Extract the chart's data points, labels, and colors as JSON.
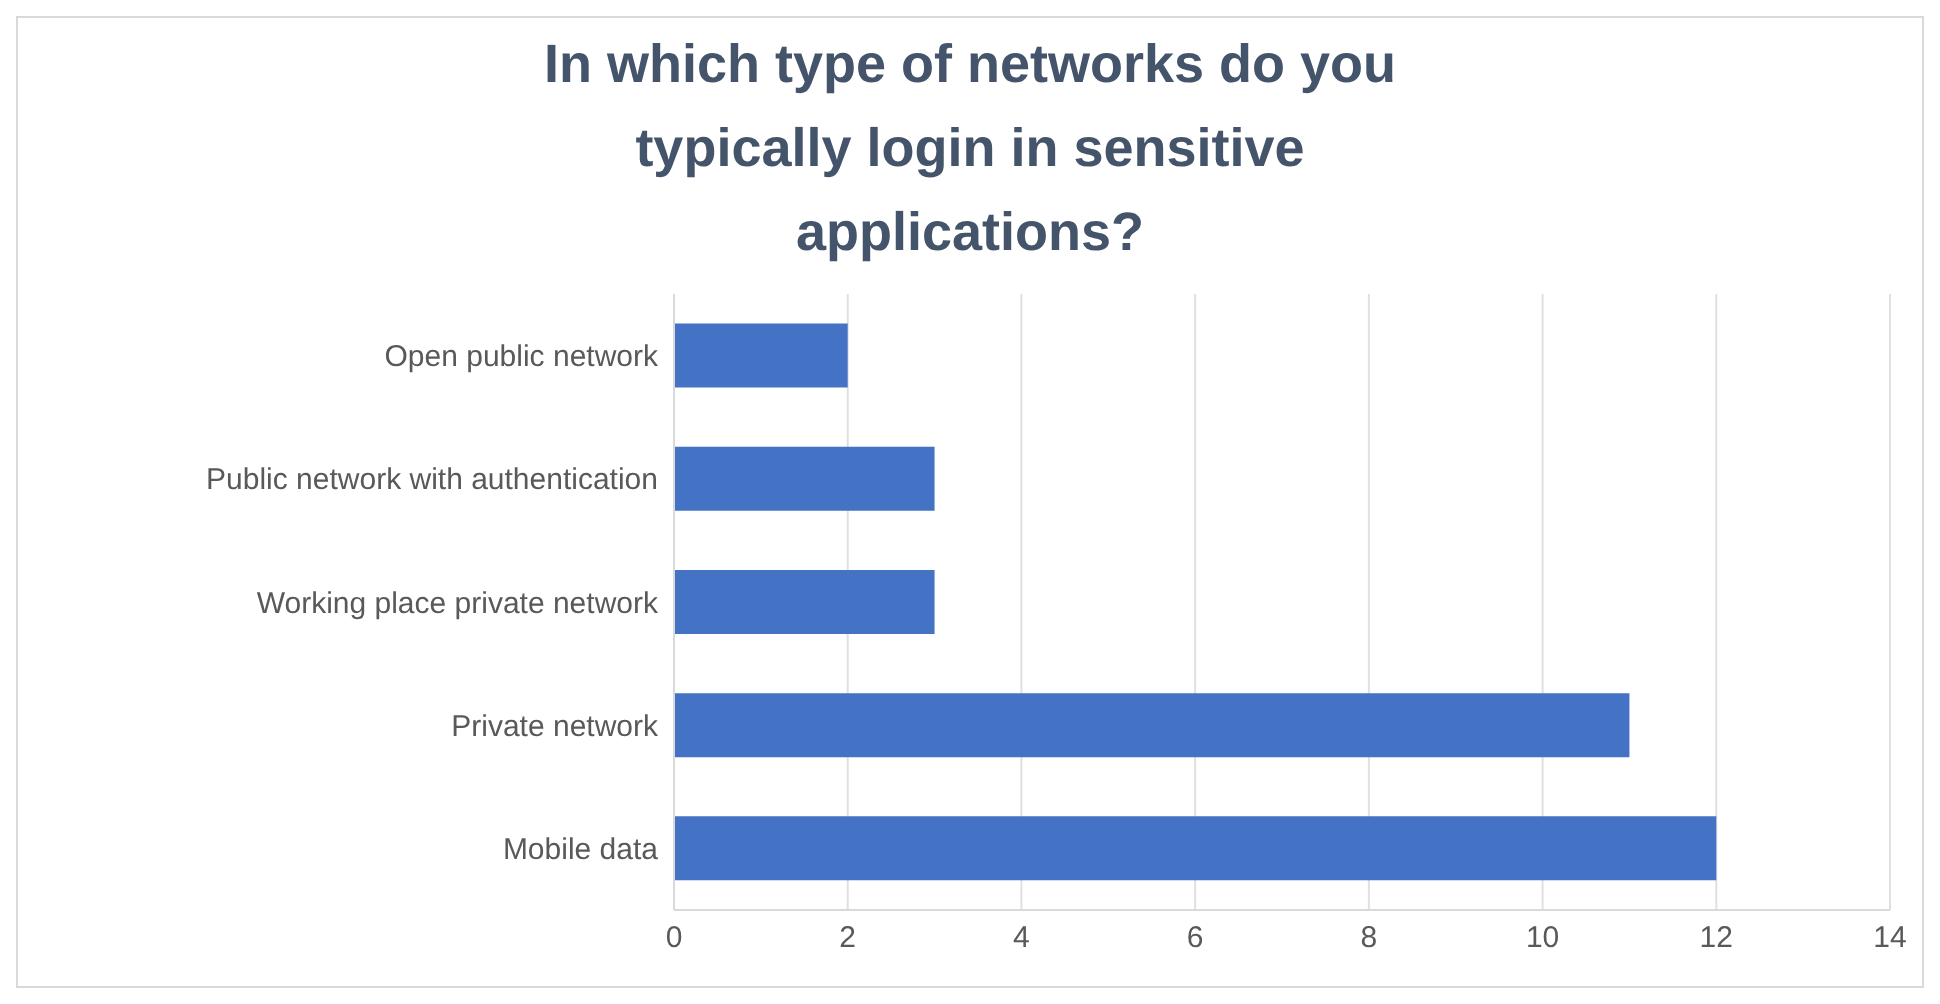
{
  "chart_data": {
    "type": "bar",
    "orientation": "horizontal",
    "title": "In which type of networks do you typically login in sensitive applications?",
    "categories": [
      "Open public network",
      "Public network with authentication",
      "Working place private network",
      "Private network",
      "Mobile data"
    ],
    "values": [
      2,
      3,
      3,
      11,
      12
    ],
    "color": "#4472c4",
    "xlim": [
      0,
      14
    ],
    "xticks": [
      0,
      2,
      4,
      6,
      8,
      10,
      12,
      14
    ],
    "grid": "x",
    "legend": false
  }
}
